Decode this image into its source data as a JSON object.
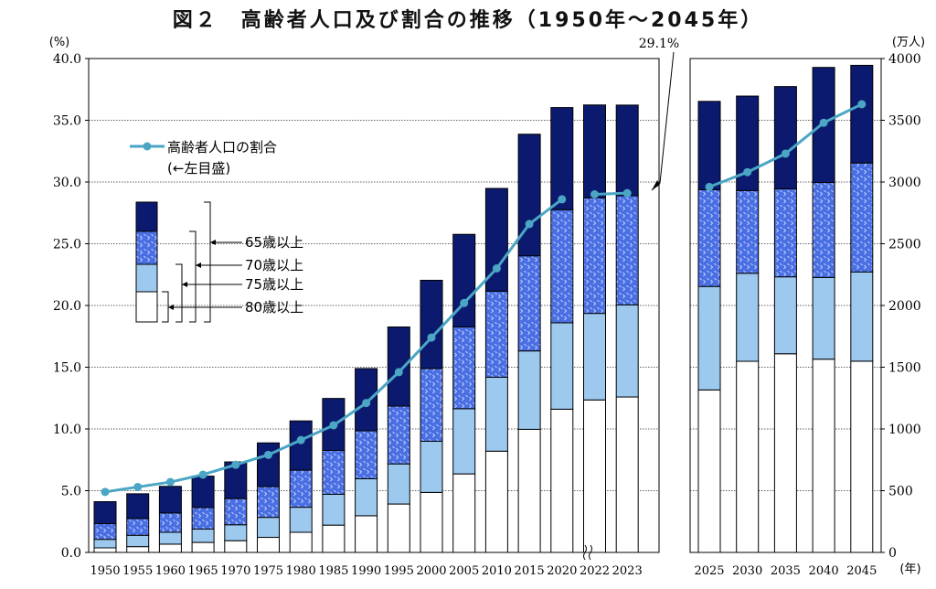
{
  "chart_data": {
    "type": "bar+line",
    "title": "図２　高齢者人口及び割合の推移（1950年～2045年）",
    "left_axis_unit": "(%)",
    "right_axis_unit": "(万人)",
    "year_unit": "(年)",
    "left_ylim": [
      0,
      40
    ],
    "right_ylim": [
      0,
      4000
    ],
    "left_ticks": [
      "0.0",
      "5.0",
      "10.0",
      "15.0",
      "20.0",
      "25.0",
      "30.0",
      "35.0",
      "40.0"
    ],
    "right_ticks": [
      "0",
      "500",
      "1000",
      "1500",
      "2000",
      "2500",
      "3000",
      "3500",
      "4000"
    ],
    "legend_line": "高齢者人口の割合",
    "legend_line_note": "(←左目盛)",
    "legend_brackets": [
      "65歳以上",
      "70歳以上",
      "75歳以上",
      "80歳以上"
    ],
    "annotation": "29.1%",
    "categories": [
      "1950",
      "1955",
      "1960",
      "1965",
      "1970",
      "1975",
      "1980",
      "1985",
      "1990",
      "1995",
      "2000",
      "2005",
      "2010",
      "2015",
      "2020",
      "2022",
      "2023",
      "2025",
      "2030",
      "2035",
      "2040",
      "2045"
    ],
    "series": [
      {
        "name": "80歳以上",
        "values": [
          37,
          47,
          67,
          81,
          95,
          122,
          163,
          221,
          297,
          392,
          486,
          636,
          820,
          997,
          1160,
          1235,
          1259,
          1316,
          1548,
          1609,
          1565,
          1549
        ]
      },
      {
        "name": "75歳以上",
        "values": [
          106,
          139,
          163,
          189,
          224,
          284,
          366,
          471,
          597,
          717,
          900,
          1164,
          1419,
          1632,
          1860,
          1936,
          2005,
          2154,
          2261,
          2232,
          2227,
          2271
        ]
      },
      {
        "name": "70歳以上",
        "values": [
          233,
          275,
          319,
          363,
          436,
          533,
          666,
          826,
          985,
          1185,
          1490,
          1826,
          2116,
          2402,
          2776,
          2872,
          2889,
          2937,
          2931,
          2945,
          2996,
          3154
        ]
      },
      {
        "name": "65歳以上",
        "values": [
          411,
          475,
          535,
          618,
          733,
          887,
          1065,
          1247,
          1489,
          1826,
          2204,
          2576,
          2948,
          3387,
          3603,
          3624,
          3623,
          3653,
          3696,
          3773,
          3928,
          3945
        ]
      }
    ],
    "ratio_line": {
      "name": "高齢者人口の割合",
      "values": [
        4.9,
        5.3,
        5.7,
        6.3,
        7.1,
        7.9,
        9.1,
        10.3,
        12.1,
        14.6,
        17.4,
        20.2,
        23.0,
        26.6,
        28.6,
        null,
        29.1,
        29.6,
        30.8,
        32.3,
        34.8,
        36.3
      ]
    },
    "colors": {
      "s80": "#ffffff",
      "s75": "#9dc9ef",
      "s70": "#4a6fe3",
      "s65": "#0b1a6e",
      "line": "#4aa6c4",
      "border": "#000000"
    }
  }
}
